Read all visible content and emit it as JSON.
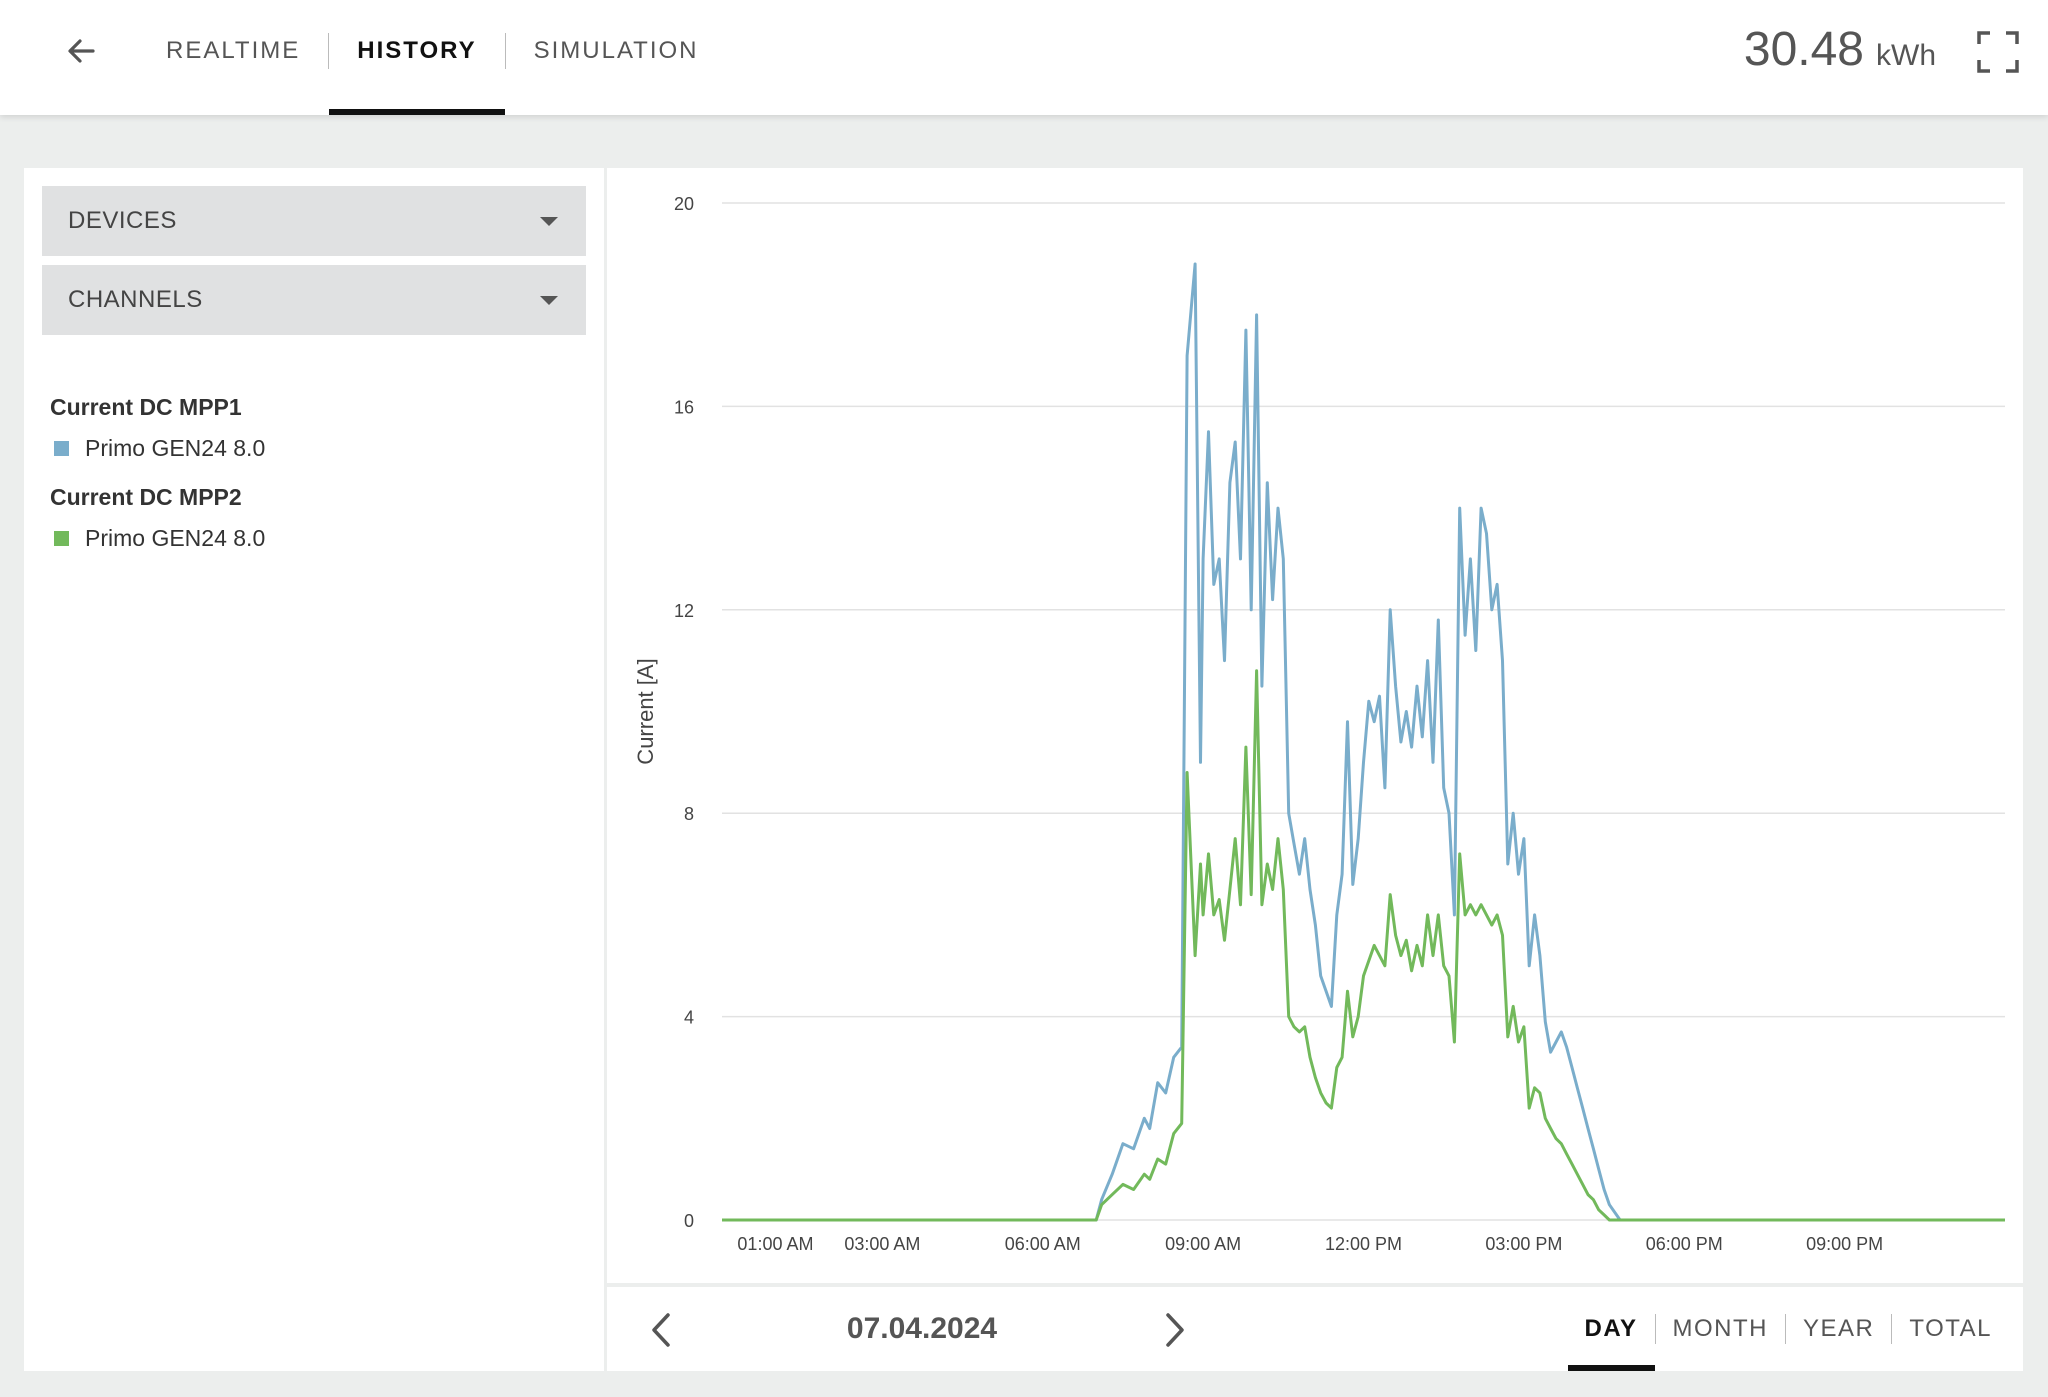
{
  "header": {
    "tabs": [
      {
        "label": "REALTIME",
        "active": false
      },
      {
        "label": "HISTORY",
        "active": true
      },
      {
        "label": "SIMULATION",
        "active": false
      }
    ],
    "energy_value": "30.48",
    "energy_unit": "kWh",
    "icons": {
      "back": "arrow-left-icon",
      "fullscreen": "fullscreen-icon"
    }
  },
  "sidebar": {
    "dropdowns": [
      {
        "label": "DEVICES"
      },
      {
        "label": "CHANNELS"
      }
    ],
    "legend": [
      {
        "title": "Current DC MPP1",
        "item": "Primo GEN24 8.0",
        "color": "#7aadcb"
      },
      {
        "title": "Current DC MPP2",
        "item": "Primo GEN24 8.0",
        "color": "#72b95b"
      }
    ]
  },
  "footer": {
    "date": "07.04.2024",
    "periods": [
      {
        "label": "DAY",
        "active": true
      },
      {
        "label": "MONTH",
        "active": false
      },
      {
        "label": "YEAR",
        "active": false
      },
      {
        "label": "TOTAL",
        "active": false
      }
    ]
  },
  "chart_data": {
    "type": "line",
    "title": "",
    "xlabel": "",
    "ylabel": "Current [A]",
    "ylim": [
      0,
      20
    ],
    "yticks": [
      0,
      4,
      8,
      12,
      16,
      20
    ],
    "xlim": [
      0,
      24
    ],
    "xticks": [
      {
        "v": 1,
        "label": "01:00 AM"
      },
      {
        "v": 3,
        "label": "03:00 AM"
      },
      {
        "v": 6,
        "label": "06:00 AM"
      },
      {
        "v": 9,
        "label": "09:00 AM"
      },
      {
        "v": 12,
        "label": "12:00 PM"
      },
      {
        "v": 15,
        "label": "03:00 PM"
      },
      {
        "v": 18,
        "label": "06:00 PM"
      },
      {
        "v": 21,
        "label": "09:00 PM"
      }
    ],
    "grid": true,
    "series": [
      {
        "name": "Primo GEN24 8.0",
        "color": "#7aadcb",
        "x": [
          0,
          7.0,
          7.1,
          7.3,
          7.5,
          7.7,
          7.9,
          8.0,
          8.15,
          8.3,
          8.45,
          8.6,
          8.7,
          8.85,
          8.95,
          9.0,
          9.1,
          9.2,
          9.3,
          9.4,
          9.5,
          9.6,
          9.7,
          9.8,
          9.9,
          10.0,
          10.1,
          10.2,
          10.3,
          10.4,
          10.5,
          10.6,
          10.7,
          10.8,
          10.9,
          11.0,
          11.1,
          11.2,
          11.3,
          11.4,
          11.5,
          11.6,
          11.7,
          11.8,
          11.9,
          12.0,
          12.1,
          12.2,
          12.3,
          12.4,
          12.5,
          12.6,
          12.7,
          12.8,
          12.9,
          13.0,
          13.1,
          13.2,
          13.3,
          13.4,
          13.5,
          13.6,
          13.7,
          13.8,
          13.9,
          14.0,
          14.1,
          14.2,
          14.3,
          14.4,
          14.5,
          14.6,
          14.7,
          14.8,
          14.9,
          15.0,
          15.1,
          15.2,
          15.3,
          15.4,
          15.5,
          15.6,
          15.7,
          15.8,
          15.9,
          16.0,
          16.1,
          16.2,
          16.3,
          16.4,
          16.5,
          16.6,
          16.8,
          17.0,
          17.3,
          17.6,
          17.8,
          17.9,
          24
        ],
        "values": [
          0,
          0,
          0.4,
          0.9,
          1.5,
          1.4,
          2.0,
          1.8,
          2.7,
          2.5,
          3.2,
          3.4,
          17.0,
          18.8,
          9.0,
          13.0,
          15.5,
          12.5,
          13.0,
          11.0,
          14.5,
          15.3,
          13.0,
          17.5,
          12.0,
          17.8,
          10.5,
          14.5,
          12.2,
          14.0,
          13.0,
          8.0,
          7.4,
          6.8,
          7.5,
          6.5,
          5.8,
          4.8,
          4.5,
          4.2,
          6.0,
          6.8,
          9.8,
          6.6,
          7.5,
          9.0,
          10.2,
          9.8,
          10.3,
          8.5,
          12.0,
          10.5,
          9.4,
          10.0,
          9.3,
          10.5,
          9.5,
          11.0,
          9.0,
          11.8,
          8.5,
          8.0,
          6.0,
          14.0,
          11.5,
          13.0,
          11.2,
          14.0,
          13.5,
          12.0,
          12.5,
          11.0,
          7.0,
          8.0,
          6.8,
          7.5,
          5.0,
          6.0,
          5.2,
          3.9,
          3.3,
          3.5,
          3.7,
          3.4,
          3.0,
          2.6,
          2.2,
          1.8,
          1.4,
          1.0,
          0.6,
          0.3,
          0,
          0,
          0,
          0,
          0,
          0,
          0
        ],
        "values_note": ""
      },
      {
        "name": "Primo GEN24 8.0",
        "color": "#72b95b",
        "x": [
          0,
          7.0,
          7.1,
          7.3,
          7.5,
          7.7,
          7.9,
          8.0,
          8.15,
          8.3,
          8.45,
          8.6,
          8.7,
          8.85,
          8.95,
          9.0,
          9.1,
          9.2,
          9.3,
          9.4,
          9.5,
          9.6,
          9.7,
          9.8,
          9.9,
          10.0,
          10.1,
          10.2,
          10.3,
          10.4,
          10.5,
          10.6,
          10.7,
          10.8,
          10.9,
          11.0,
          11.1,
          11.2,
          11.3,
          11.4,
          11.5,
          11.6,
          11.7,
          11.8,
          11.9,
          12.0,
          12.1,
          12.2,
          12.3,
          12.4,
          12.5,
          12.6,
          12.7,
          12.8,
          12.9,
          13.0,
          13.1,
          13.2,
          13.3,
          13.4,
          13.5,
          13.6,
          13.7,
          13.8,
          13.9,
          14.0,
          14.1,
          14.2,
          14.3,
          14.4,
          14.5,
          14.6,
          14.7,
          14.8,
          14.9,
          15.0,
          15.1,
          15.2,
          15.3,
          15.4,
          15.5,
          15.6,
          15.7,
          15.8,
          15.9,
          16.0,
          16.1,
          16.2,
          16.3,
          16.4,
          16.5,
          16.6,
          16.8,
          17.0,
          17.3,
          17.6,
          17.8,
          17.9,
          24
        ],
        "values": [
          0,
          0,
          0.3,
          0.5,
          0.7,
          0.6,
          0.9,
          0.8,
          1.2,
          1.1,
          1.7,
          1.9,
          8.8,
          5.2,
          7.0,
          6.0,
          7.2,
          6.0,
          6.3,
          5.5,
          6.5,
          7.5,
          6.2,
          9.3,
          6.4,
          10.8,
          6.2,
          7.0,
          6.5,
          7.5,
          6.5,
          4.0,
          3.8,
          3.7,
          3.8,
          3.2,
          2.8,
          2.5,
          2.3,
          2.2,
          3.0,
          3.2,
          4.5,
          3.6,
          4.0,
          4.8,
          5.1,
          5.4,
          5.2,
          5.0,
          6.4,
          5.6,
          5.2,
          5.5,
          4.9,
          5.4,
          5.0,
          6.0,
          5.2,
          6.0,
          5.0,
          4.8,
          3.5,
          7.2,
          6.0,
          6.2,
          6.0,
          6.2,
          6.0,
          5.8,
          6.0,
          5.6,
          3.6,
          4.2,
          3.5,
          3.8,
          2.2,
          2.6,
          2.5,
          2.0,
          1.8,
          1.6,
          1.5,
          1.3,
          1.1,
          0.9,
          0.7,
          0.5,
          0.4,
          0.2,
          0.1,
          0,
          0,
          0,
          0,
          0,
          0,
          0,
          0
        ]
      }
    ]
  }
}
